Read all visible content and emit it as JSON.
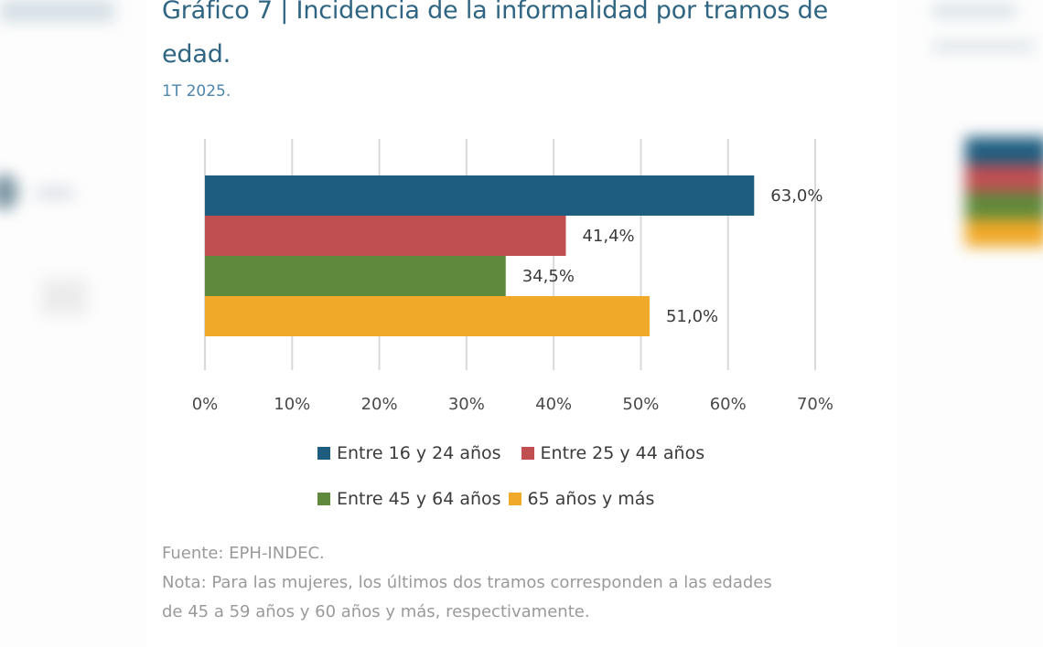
{
  "header": {
    "title": "Gráfico 7 | Incidencia de la informalidad por tramos de edad.",
    "subtitle": "1T 2025."
  },
  "chart_data": {
    "type": "bar",
    "orientation": "horizontal",
    "title": "Gráfico 7 | Incidencia de la informalidad por tramos de edad.",
    "subtitle": "1T 2025.",
    "xlabel": "",
    "ylabel": "",
    "xlim": [
      0,
      70
    ],
    "x_ticks": [
      0,
      10,
      20,
      30,
      40,
      50,
      60,
      70
    ],
    "x_tick_labels": [
      "0%",
      "10%",
      "20%",
      "30%",
      "40%",
      "50%",
      "60%",
      "70%"
    ],
    "grid": "vertical",
    "legend_position": "bottom",
    "series": [
      {
        "name": "Entre 16 y 24 años",
        "value": 63.0,
        "label": "63,0%",
        "color": "#1f5d80"
      },
      {
        "name": "Entre 25 y 44 años",
        "value": 41.4,
        "label": "41,4%",
        "color": "#c04f52"
      },
      {
        "name": "Entre 45 y 64 años",
        "value": 34.5,
        "label": "34,5%",
        "color": "#5f8a3c"
      },
      {
        "name": "65 años y más",
        "value": 51.0,
        "label": "51,0%",
        "color": "#f0a928"
      }
    ]
  },
  "footer": {
    "source": "Fuente: EPH-INDEC.",
    "note_line1": "Nota: Para las mujeres, los últimos dos tramos corresponden a las edades",
    "note_line2": "de 45 a 59 años y 60 años y más, respectivamente."
  }
}
